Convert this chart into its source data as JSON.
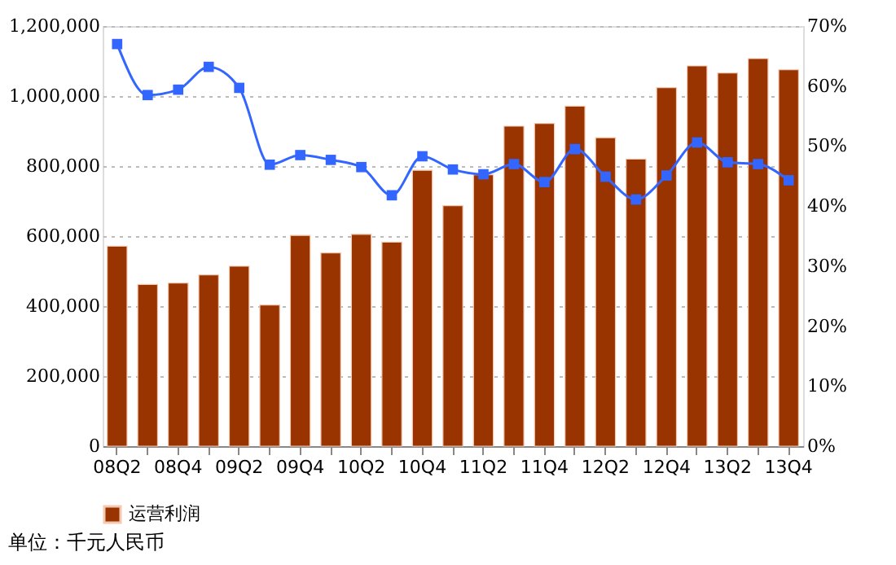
{
  "chart_data": {
    "type": "bar",
    "categories": [
      "08Q2",
      null,
      "08Q4",
      null,
      "09Q2",
      null,
      "09Q4",
      null,
      "10Q2",
      null,
      "10Q4",
      null,
      "11Q2",
      null,
      "11Q4",
      null,
      "12Q2",
      null,
      "12Q4",
      null,
      "13Q2",
      null,
      "13Q4"
    ],
    "series": [
      {
        "name": "运营利润",
        "color": "#993300",
        "values": [
          571000,
          462000,
          466000,
          489000,
          514000,
          403000,
          602000,
          552000,
          605000,
          583000,
          788000,
          687000,
          775000,
          914000,
          922000,
          971000,
          881000,
          820000,
          1024000,
          1086000,
          1066000,
          1107000,
          1075000
        ]
      },
      {
        "type": "line",
        "axis": "y2",
        "color": "#3366ff",
        "marker": "square",
        "values": [
          67.0,
          58.5,
          59.4,
          63.2,
          59.7,
          46.9,
          48.5,
          47.7,
          46.5,
          41.8,
          48.3,
          46.1,
          45.3,
          47.0,
          44.0,
          49.5,
          44.9,
          41.1,
          45.1,
          50.6,
          47.3,
          47.0,
          44.3
        ]
      }
    ],
    "ylim": [
      0,
      1200000
    ],
    "yticks": [
      {
        "value": 0,
        "label": "0"
      },
      {
        "value": 200000,
        "label": "200,000"
      },
      {
        "value": 400000,
        "label": "400,000"
      },
      {
        "value": 600000,
        "label": "600,000"
      },
      {
        "value": 800000,
        "label": "800,000"
      },
      {
        "value": 1000000,
        "label": "1,000,000"
      },
      {
        "value": 1200000,
        "label": "1,200,000"
      }
    ],
    "y2lim": [
      0,
      70
    ],
    "y2ticks": [
      {
        "value": 0,
        "label": "0%"
      },
      {
        "value": 10,
        "label": "10%"
      },
      {
        "value": 20,
        "label": "20%"
      },
      {
        "value": 30,
        "label": "30%"
      },
      {
        "value": 40,
        "label": "40%"
      },
      {
        "value": 50,
        "label": "50%"
      },
      {
        "value": 60,
        "label": "60%"
      },
      {
        "value": 70,
        "label": "70%"
      }
    ],
    "grid": "y",
    "legend": "bottom",
    "annotations": [
      "单位：千元人民币"
    ]
  }
}
